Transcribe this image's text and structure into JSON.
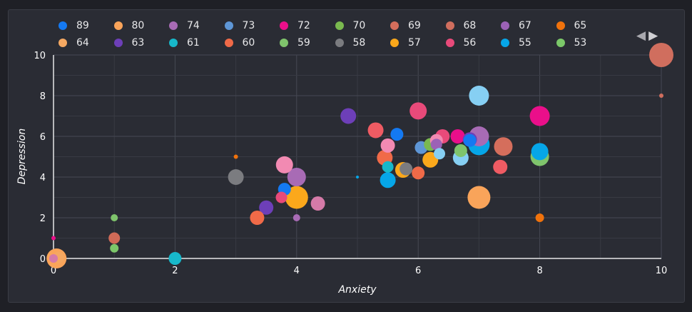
{
  "nav": {
    "prev": "◀",
    "next": "▶"
  },
  "chart_data": {
    "type": "scatter",
    "xlabel": "Anxiety",
    "ylabel": "Depression",
    "xlim": [
      0,
      10
    ],
    "ylim": [
      0,
      10
    ],
    "xticks": [
      0,
      2,
      4,
      6,
      8,
      10
    ],
    "yticks": [
      0,
      2,
      4,
      6,
      8,
      10
    ],
    "grid": true,
    "legend_position": "top",
    "series": [
      {
        "name": "89",
        "color": "#1479f2",
        "points": [
          {
            "x": 3.8,
            "y": 3.4,
            "size": 9
          },
          {
            "x": 5.65,
            "y": 6.1,
            "size": 9
          },
          {
            "x": 6.85,
            "y": 5.8,
            "size": 9
          }
        ]
      },
      {
        "name": "80",
        "color": "#f9a45a",
        "points": [
          {
            "x": 0.05,
            "y": 0.0,
            "size": 14
          },
          {
            "x": 7.0,
            "y": 3.0,
            "size": 16
          }
        ]
      },
      {
        "name": "74",
        "color": "#a86bb5",
        "points": [
          {
            "x": 4.0,
            "y": 2.0,
            "size": 5
          },
          {
            "x": 4.0,
            "y": 4.0,
            "size": 13
          },
          {
            "x": 7.0,
            "y": 6.0,
            "size": 14
          }
        ]
      },
      {
        "name": "73",
        "color": "#5e96d6",
        "points": [
          {
            "x": 6.05,
            "y": 5.45,
            "size": 9
          }
        ]
      },
      {
        "name": "72",
        "color": "#ea0f8a",
        "points": [
          {
            "x": 0.0,
            "y": 1.0,
            "size": 3
          },
          {
            "x": 6.65,
            "y": 6.0,
            "size": 10
          },
          {
            "x": 8.0,
            "y": 7.0,
            "size": 14
          }
        ]
      },
      {
        "name": "70",
        "color": "#7ab94f",
        "points": [
          {
            "x": 6.2,
            "y": 5.6,
            "size": 9
          }
        ]
      },
      {
        "name": "69",
        "color": "#d56e5c",
        "points": [
          {
            "x": 7.4,
            "y": 5.5,
            "size": 13
          }
        ]
      },
      {
        "name": "68",
        "color": "#d06e5e",
        "points": [
          {
            "x": 10.0,
            "y": 8.0,
            "size": 3
          },
          {
            "x": 10.0,
            "y": 10.0,
            "size": 17
          }
        ]
      },
      {
        "name": "67",
        "color": "#9c62b6",
        "points": [
          {
            "x": 6.3,
            "y": 5.6,
            "size": 8
          }
        ]
      },
      {
        "name": "65",
        "color": "#f0720c",
        "points": [
          {
            "x": 3.0,
            "y": 5.0,
            "size": 3
          },
          {
            "x": 8.0,
            "y": 2.0,
            "size": 6
          }
        ]
      },
      {
        "name": "64",
        "color": "#f5a862",
        "points": [
          {
            "x": 0.08,
            "y": 0.05,
            "size": 8
          }
        ]
      },
      {
        "name": "63",
        "color": "#6d3fb8",
        "points": [
          {
            "x": 3.5,
            "y": 2.5,
            "size": 10
          },
          {
            "x": 4.85,
            "y": 7.0,
            "size": 11
          },
          {
            "x": 6.85,
            "y": 5.85,
            "size": 10
          }
        ]
      },
      {
        "name": "61",
        "color": "#17b8ca",
        "points": [
          {
            "x": 2.0,
            "y": 0.0,
            "size": 9
          },
          {
            "x": 5.5,
            "y": 4.5,
            "size": 8
          }
        ]
      },
      {
        "name": "60",
        "color": "#f06a48",
        "points": [
          {
            "x": 3.35,
            "y": 2.0,
            "size": 10
          },
          {
            "x": 5.45,
            "y": 4.95,
            "size": 11
          },
          {
            "x": 6.0,
            "y": 4.2,
            "size": 9
          }
        ]
      },
      {
        "name": "59",
        "color": "#7fc46c",
        "points": [
          {
            "x": 1.0,
            "y": 0.5,
            "size": 6
          },
          {
            "x": 1.0,
            "y": 2.0,
            "size": 5
          },
          {
            "x": 6.7,
            "y": 5.3,
            "size": 9
          },
          {
            "x": 8.0,
            "y": 5.0,
            "size": 13
          }
        ]
      },
      {
        "name": "58",
        "color": "#7b7c80",
        "points": [
          {
            "x": 3.0,
            "y": 4.0,
            "size": 11
          },
          {
            "x": 5.8,
            "y": 4.4,
            "size": 9
          }
        ]
      },
      {
        "name": "57",
        "color": "#fba81b",
        "points": [
          {
            "x": 4.0,
            "y": 3.0,
            "size": 16
          },
          {
            "x": 5.75,
            "y": 4.35,
            "size": 11
          },
          {
            "x": 6.2,
            "y": 4.85,
            "size": 11
          }
        ]
      },
      {
        "name": "56",
        "color": "#e84a7a",
        "points": [
          {
            "x": 3.75,
            "y": 3.0,
            "size": 8
          },
          {
            "x": 6.0,
            "y": 7.25,
            "size": 12
          },
          {
            "x": 6.4,
            "y": 6.0,
            "size": 10
          }
        ]
      },
      {
        "name": "55",
        "color": "#06a6e8",
        "points": [
          {
            "x": 5.0,
            "y": 4.0,
            "size": 2
          },
          {
            "x": 5.5,
            "y": 3.85,
            "size": 11
          },
          {
            "x": 7.0,
            "y": 5.6,
            "size": 15
          },
          {
            "x": 8.0,
            "y": 5.25,
            "size": 12
          }
        ]
      },
      {
        "name": "53",
        "color": "#7bc869",
        "points": [
          {
            "x": 1.0,
            "y": 0.5,
            "size": 5
          }
        ]
      },
      {
        "name": "",
        "color": "#f28ab2",
        "points": [
          {
            "x": 3.8,
            "y": 4.6,
            "size": 12
          },
          {
            "x": 5.5,
            "y": 5.55,
            "size": 10
          },
          {
            "x": 6.3,
            "y": 5.8,
            "size": 9
          }
        ]
      },
      {
        "name": "",
        "color": "#d57aa8",
        "points": [
          {
            "x": 0.0,
            "y": 0.0,
            "size": 6
          },
          {
            "x": 4.35,
            "y": 2.7,
            "size": 10
          }
        ]
      },
      {
        "name": "",
        "color": "#ef5b63",
        "points": [
          {
            "x": 5.3,
            "y": 6.3,
            "size": 11
          },
          {
            "x": 7.35,
            "y": 4.5,
            "size": 10
          }
        ]
      },
      {
        "name": "",
        "color": "#d06a57",
        "points": [
          {
            "x": 1.0,
            "y": 1.0,
            "size": 8
          }
        ]
      },
      {
        "name": "",
        "color": "#86cff3",
        "points": [
          {
            "x": 6.35,
            "y": 5.15,
            "size": 8
          },
          {
            "x": 6.7,
            "y": 4.95,
            "size": 11
          },
          {
            "x": 7.0,
            "y": 8.0,
            "size": 14
          }
        ]
      }
    ]
  }
}
